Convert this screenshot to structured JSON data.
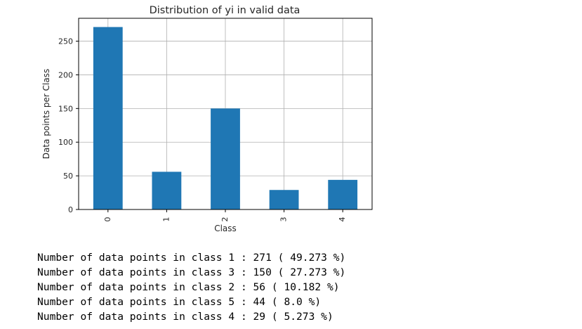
{
  "chart_data": {
    "type": "bar",
    "title": "Distribution of yi in valid data",
    "xlabel": "Class",
    "ylabel": "Data points per Class",
    "categories": [
      "0",
      "1",
      "2",
      "3",
      "4"
    ],
    "values": [
      271,
      56,
      150,
      29,
      44
    ],
    "ylim": [
      0,
      284
    ],
    "yticks": [
      0,
      50,
      100,
      150,
      200,
      250
    ],
    "grid": true,
    "bar_color": "#1f77b4",
    "legend": "none"
  },
  "output": {
    "lines": [
      "Number of data points in class 1 : 271 ( 49.273 %)",
      "Number of data points in class 3 : 150 ( 27.273 %)",
      "Number of data points in class 2 : 56 ( 10.182 %)",
      "Number of data points in class 5 : 44 ( 8.0 %)",
      "Number of data points in class 4 : 29 ( 5.273 %)"
    ]
  }
}
